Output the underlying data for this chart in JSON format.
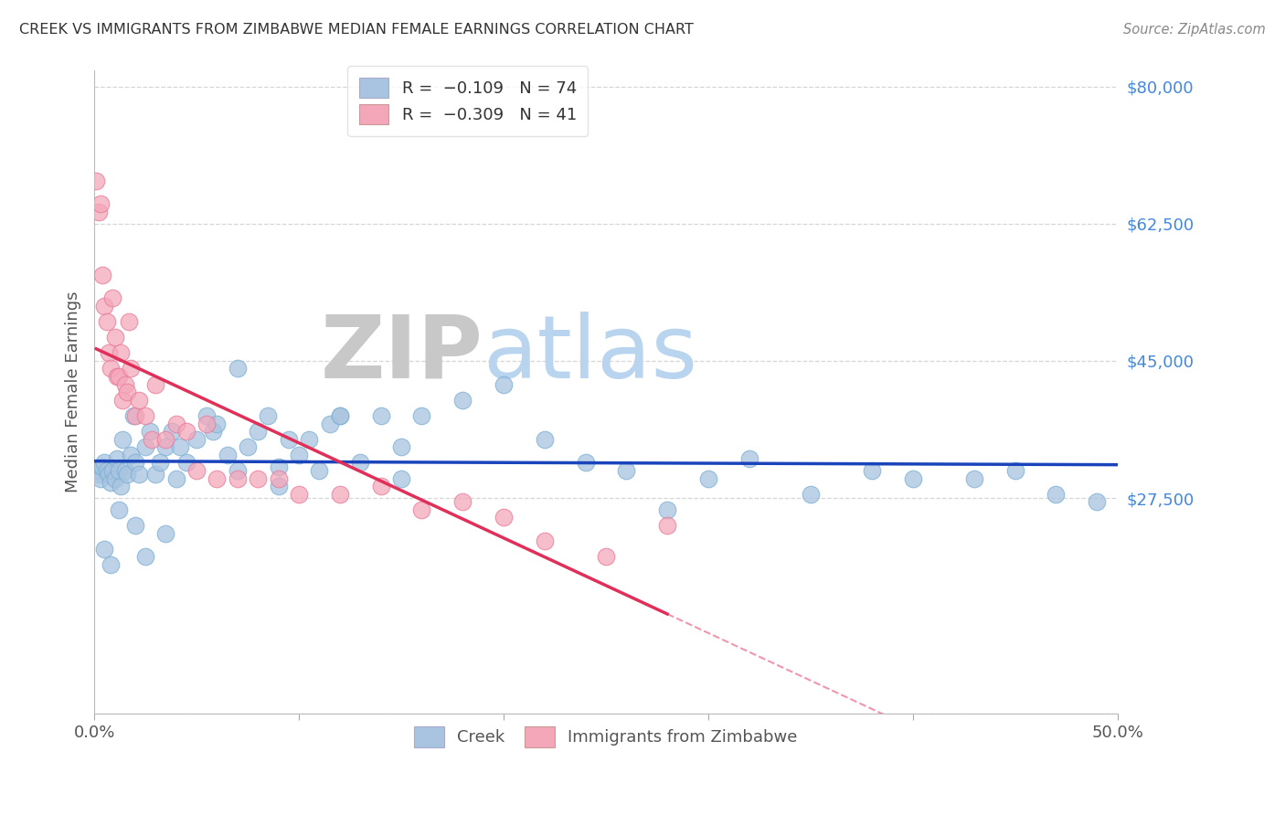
{
  "title": "CREEK VS IMMIGRANTS FROM ZIMBABWE MEDIAN FEMALE EARNINGS CORRELATION CHART",
  "source_text": "Source: ZipAtlas.com",
  "ylabel": "Median Female Earnings",
  "xlim": [
    0.0,
    0.5
  ],
  "ylim": [
    0,
    82000
  ],
  "yticks": [
    0,
    27500,
    45000,
    62500,
    80000
  ],
  "ytick_labels": [
    "",
    "$27,500",
    "$45,000",
    "$62,500",
    "$80,000"
  ],
  "xtick_labels": [
    "0.0%",
    "",
    "",
    "",
    "",
    "50.0%"
  ],
  "creek_color": "#a8c4e0",
  "creek_edge_color": "#7bafd4",
  "zim_color": "#f4a7b9",
  "zim_edge_color": "#e87a9a",
  "creek_line_color": "#1a44bb",
  "zim_line_color": "#e0305a",
  "grid_color": "#cccccc",
  "watermark_zip_color": "#c8c8c8",
  "watermark_atlas_color": "#b8d4ee",
  "background_color": "#ffffff",
  "creek_x": [
    0.001,
    0.002,
    0.003,
    0.004,
    0.005,
    0.006,
    0.007,
    0.008,
    0.009,
    0.01,
    0.011,
    0.012,
    0.013,
    0.014,
    0.015,
    0.016,
    0.018,
    0.019,
    0.02,
    0.022,
    0.025,
    0.027,
    0.03,
    0.032,
    0.035,
    0.038,
    0.04,
    0.042,
    0.045,
    0.05,
    0.055,
    0.058,
    0.06,
    0.065,
    0.07,
    0.075,
    0.08,
    0.085,
    0.09,
    0.095,
    0.1,
    0.105,
    0.11,
    0.115,
    0.12,
    0.13,
    0.14,
    0.15,
    0.16,
    0.18,
    0.2,
    0.22,
    0.24,
    0.26,
    0.28,
    0.3,
    0.32,
    0.35,
    0.38,
    0.4,
    0.43,
    0.45,
    0.47,
    0.49,
    0.005,
    0.008,
    0.012,
    0.02,
    0.025,
    0.035,
    0.07,
    0.09,
    0.12,
    0.15
  ],
  "creek_y": [
    31000,
    30500,
    30000,
    31500,
    32000,
    31000,
    30500,
    29500,
    31000,
    30000,
    32500,
    31000,
    29000,
    35000,
    31000,
    30500,
    33000,
    38000,
    32000,
    30500,
    34000,
    36000,
    30500,
    32000,
    34000,
    36000,
    30000,
    34000,
    32000,
    35000,
    38000,
    36000,
    37000,
    33000,
    31000,
    34000,
    36000,
    38000,
    31500,
    35000,
    33000,
    35000,
    31000,
    37000,
    38000,
    32000,
    38000,
    34000,
    38000,
    40000,
    42000,
    35000,
    32000,
    31000,
    26000,
    30000,
    32500,
    28000,
    31000,
    30000,
    30000,
    31000,
    28000,
    27000,
    21000,
    19000,
    26000,
    24000,
    20000,
    23000,
    44000,
    29000,
    38000,
    30000
  ],
  "zim_x": [
    0.001,
    0.002,
    0.003,
    0.004,
    0.005,
    0.006,
    0.007,
    0.008,
    0.009,
    0.01,
    0.011,
    0.012,
    0.013,
    0.014,
    0.015,
    0.016,
    0.017,
    0.018,
    0.02,
    0.022,
    0.025,
    0.028,
    0.03,
    0.035,
    0.04,
    0.045,
    0.05,
    0.055,
    0.06,
    0.07,
    0.08,
    0.09,
    0.1,
    0.12,
    0.14,
    0.16,
    0.18,
    0.2,
    0.22,
    0.25,
    0.28
  ],
  "zim_y": [
    68000,
    64000,
    65000,
    56000,
    52000,
    50000,
    46000,
    44000,
    53000,
    48000,
    43000,
    43000,
    46000,
    40000,
    42000,
    41000,
    50000,
    44000,
    38000,
    40000,
    38000,
    35000,
    42000,
    35000,
    37000,
    36000,
    31000,
    37000,
    30000,
    30000,
    30000,
    30000,
    28000,
    28000,
    29000,
    26000,
    27000,
    25000,
    22000,
    20000,
    24000
  ]
}
